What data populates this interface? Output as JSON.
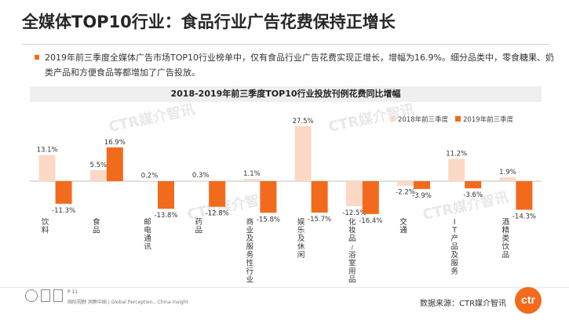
{
  "page": {
    "title": "全媒体TOP10行业：食品行业广告花费保持正增长",
    "summary": "2019年前三季度全媒体广告市场TOP10行业榜单中，仅有食品行业广告花费实现正增长，增幅为16.9%。细分品类中，零食糖果、奶类产品和方便食品等都增加了广告投放。",
    "page_number": "P 11",
    "footer_tagline": "国际视野 洞察中国 | Global Perception，China Insight",
    "source": "数据来源：CTR媒介智讯",
    "logo_text": "ctr",
    "watermark": "CTR媒介智讯"
  },
  "chart_data": {
    "type": "bar",
    "title": "2018-2019年前三季度TOP10行业投放刊例花费同比增幅",
    "categories": [
      "饮料",
      "食品",
      "邮电通讯",
      "药品",
      "商业及服务性行业",
      "娱乐及休闲",
      "化妆品/浴室用品",
      "交通",
      "IT产品及服务",
      "酒精类饮品"
    ],
    "series": [
      {
        "name": "2018年前三季度",
        "color": "#fbd9c4",
        "values": [
          13.1,
          5.5,
          0.2,
          0.3,
          1.1,
          27.5,
          -12.5,
          -2.2,
          11.2,
          1.9
        ]
      },
      {
        "name": "2019年前三季度",
        "color": "#f26b1d",
        "values": [
          -11.3,
          16.9,
          -13.8,
          -12.8,
          -15.8,
          -15.7,
          -16.4,
          -3.9,
          -3.6,
          -14.3
        ]
      }
    ],
    "ylim": [
      -20,
      30
    ],
    "value_suffix": "%",
    "legend_position": "top-right",
    "grid": false
  }
}
